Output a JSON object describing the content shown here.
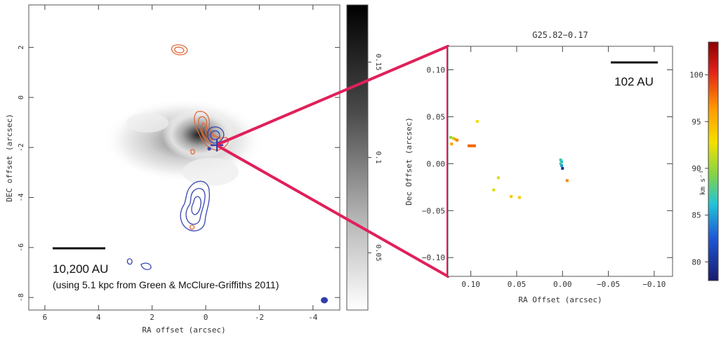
{
  "chart_data": [
    {
      "type": "scatter",
      "subtype": "grayscale image with contours",
      "xlabel": "RA offset (arcsec)",
      "ylabel": "DEC offset (arcsec)",
      "xlim": [
        6.6,
        -5.0
      ],
      "ylim": [
        -8.5,
        3.7
      ],
      "xticks": [
        6,
        4,
        2,
        0,
        -2,
        -4
      ],
      "yticks": [
        2,
        0,
        -2,
        -4,
        -6,
        -8
      ],
      "colorbar": {
        "ticks": [
          0.15,
          0.1,
          0.05
        ],
        "range": [
          0.02,
          0.18
        ],
        "colormap": "grayscale"
      },
      "scale_bar": {
        "label": "10,200 AU",
        "note": "(using 5.1 kpc from Green & McClure-Griffiths 2011)"
      },
      "marker": {
        "symbol": "+",
        "x": -0.5,
        "y": -2.1,
        "color": "#3a3aa8"
      },
      "contour_colors": {
        "red": "#e06a3c",
        "blue": "#3a46b0"
      }
    },
    {
      "type": "scatter",
      "title": "G25.82−0.17",
      "xlabel": "RA Offset (arcsec)",
      "ylabel": "Dec Offset (arcsec)",
      "xlim": [
        0.125,
        -0.12
      ],
      "ylim": [
        -0.12,
        0.125
      ],
      "xticks": [
        0.1,
        0.05,
        0.0,
        -0.05,
        -0.1
      ],
      "xtick_labels": [
        "0.10",
        "0.05",
        "0.00",
        "−0.05",
        "−0.10"
      ],
      "yticks": [
        0.1,
        0.05,
        0.0,
        -0.05,
        -0.1
      ],
      "ytick_labels": [
        "0.10",
        "0.05",
        "0.00",
        "−0.05",
        "−0.10"
      ],
      "colorbar": {
        "label": "km s⁻¹",
        "ticks": [
          100,
          95,
          90,
          85,
          80
        ],
        "range": [
          78,
          103.5
        ],
        "colormap": "jet"
      },
      "scale_bar": {
        "label": "102 AU"
      },
      "points": [
        {
          "x": 0.122,
          "y": 0.028,
          "v": 90
        },
        {
          "x": 0.119,
          "y": 0.027,
          "v": 91
        },
        {
          "x": 0.117,
          "y": 0.026,
          "v": 96
        },
        {
          "x": 0.115,
          "y": 0.025,
          "v": 97
        },
        {
          "x": 0.121,
          "y": 0.021,
          "v": 96
        },
        {
          "x": 0.102,
          "y": 0.019,
          "v": 98
        },
        {
          "x": 0.1,
          "y": 0.019,
          "v": 98
        },
        {
          "x": 0.098,
          "y": 0.019,
          "v": 98
        },
        {
          "x": 0.096,
          "y": 0.019,
          "v": 98
        },
        {
          "x": 0.093,
          "y": 0.045,
          "v": 93
        },
        {
          "x": 0.07,
          "y": -0.015,
          "v": 92
        },
        {
          "x": 0.075,
          "y": -0.028,
          "v": 92
        },
        {
          "x": 0.056,
          "y": -0.035,
          "v": 94
        },
        {
          "x": 0.047,
          "y": -0.036,
          "v": 94
        },
        {
          "x": 0.002,
          "y": 0.004,
          "v": 87
        },
        {
          "x": 0.001,
          "y": 0.002,
          "v": 86
        },
        {
          "x": 0.002,
          "y": 0.0,
          "v": 88
        },
        {
          "x": 0.001,
          "y": -0.002,
          "v": 85
        },
        {
          "x": 0.0,
          "y": -0.005,
          "v": 80
        },
        {
          "x": -0.005,
          "y": -0.018,
          "v": 97
        }
      ]
    }
  ]
}
